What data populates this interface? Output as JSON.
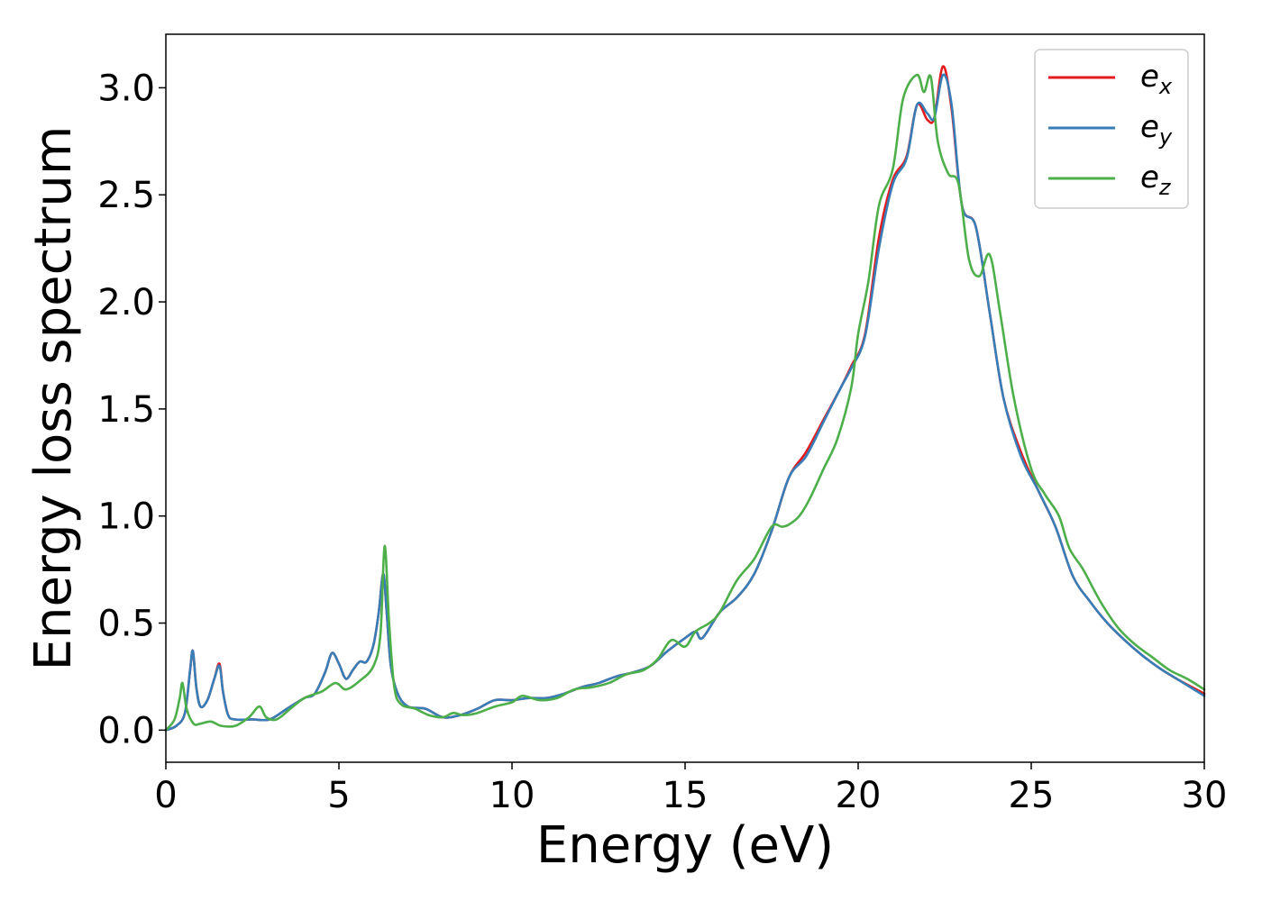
{
  "chart_data": {
    "type": "line",
    "xlabel": "Energy (eV)",
    "ylabel": "Energy loss spectrum",
    "xlim": [
      0,
      30
    ],
    "ylim": [
      -0.15,
      3.25
    ],
    "xticks": [
      "0",
      "5",
      "10",
      "15",
      "20",
      "25",
      "30"
    ],
    "yticks": [
      "0.0",
      "0.5",
      "1.0",
      "1.5",
      "2.0",
      "2.5",
      "3.0"
    ],
    "grid": false,
    "legend_placement": "top-right",
    "series": [
      {
        "name": "e",
        "subscript": "x",
        "color": "#e41a1c",
        "points": [
          [
            0,
            0
          ],
          [
            0.3,
            0.02
          ],
          [
            0.55,
            0.08
          ],
          [
            0.7,
            0.28
          ],
          [
            0.78,
            0.37
          ],
          [
            0.88,
            0.2
          ],
          [
            1.0,
            0.11
          ],
          [
            1.2,
            0.14
          ],
          [
            1.4,
            0.24
          ],
          [
            1.55,
            0.31
          ],
          [
            1.65,
            0.18
          ],
          [
            1.8,
            0.07
          ],
          [
            2.0,
            0.05
          ],
          [
            2.5,
            0.05
          ],
          [
            3.0,
            0.05
          ],
          [
            3.5,
            0.1
          ],
          [
            4.0,
            0.15
          ],
          [
            4.3,
            0.17
          ],
          [
            4.6,
            0.27
          ],
          [
            4.8,
            0.36
          ],
          [
            5.0,
            0.31
          ],
          [
            5.2,
            0.24
          ],
          [
            5.4,
            0.28
          ],
          [
            5.6,
            0.32
          ],
          [
            5.8,
            0.32
          ],
          [
            6.0,
            0.4
          ],
          [
            6.15,
            0.55
          ],
          [
            6.28,
            0.73
          ],
          [
            6.38,
            0.55
          ],
          [
            6.5,
            0.3
          ],
          [
            6.7,
            0.17
          ],
          [
            7.0,
            0.11
          ],
          [
            7.5,
            0.1
          ],
          [
            8.0,
            0.06
          ],
          [
            8.5,
            0.07
          ],
          [
            9.0,
            0.1
          ],
          [
            9.5,
            0.14
          ],
          [
            10.0,
            0.14
          ],
          [
            10.5,
            0.15
          ],
          [
            11.0,
            0.15
          ],
          [
            11.5,
            0.17
          ],
          [
            12.0,
            0.2
          ],
          [
            12.5,
            0.22
          ],
          [
            13.0,
            0.25
          ],
          [
            13.5,
            0.27
          ],
          [
            14.0,
            0.3
          ],
          [
            14.5,
            0.37
          ],
          [
            15.0,
            0.43
          ],
          [
            15.3,
            0.46
          ],
          [
            15.5,
            0.43
          ],
          [
            16.0,
            0.55
          ],
          [
            16.5,
            0.62
          ],
          [
            17.0,
            0.73
          ],
          [
            17.5,
            0.93
          ],
          [
            18.0,
            1.18
          ],
          [
            18.5,
            1.3
          ],
          [
            19.0,
            1.45
          ],
          [
            19.5,
            1.6
          ],
          [
            19.8,
            1.7
          ],
          [
            20.2,
            1.85
          ],
          [
            20.6,
            2.3
          ],
          [
            21.0,
            2.57
          ],
          [
            21.4,
            2.68
          ],
          [
            21.7,
            2.92
          ],
          [
            22.0,
            2.85
          ],
          [
            22.2,
            2.86
          ],
          [
            22.45,
            3.1
          ],
          [
            22.7,
            2.9
          ],
          [
            23.0,
            2.45
          ],
          [
            23.4,
            2.35
          ],
          [
            23.8,
            1.95
          ],
          [
            24.2,
            1.55
          ],
          [
            24.7,
            1.3
          ],
          [
            25.2,
            1.12
          ],
          [
            25.7,
            0.95
          ],
          [
            26.2,
            0.72
          ],
          [
            26.7,
            0.6
          ],
          [
            27.2,
            0.5
          ],
          [
            27.7,
            0.42
          ],
          [
            28.2,
            0.35
          ],
          [
            28.7,
            0.29
          ],
          [
            29.2,
            0.24
          ],
          [
            30.0,
            0.17
          ]
        ]
      },
      {
        "name": "e",
        "subscript": "y",
        "color": "#377eb8",
        "points": [
          [
            0,
            0
          ],
          [
            0.3,
            0.02
          ],
          [
            0.55,
            0.08
          ],
          [
            0.7,
            0.28
          ],
          [
            0.78,
            0.37
          ],
          [
            0.88,
            0.2
          ],
          [
            1.0,
            0.11
          ],
          [
            1.2,
            0.14
          ],
          [
            1.4,
            0.24
          ],
          [
            1.55,
            0.3
          ],
          [
            1.65,
            0.18
          ],
          [
            1.8,
            0.07
          ],
          [
            2.0,
            0.05
          ],
          [
            2.5,
            0.05
          ],
          [
            3.0,
            0.05
          ],
          [
            3.5,
            0.1
          ],
          [
            4.0,
            0.15
          ],
          [
            4.3,
            0.17
          ],
          [
            4.6,
            0.27
          ],
          [
            4.8,
            0.36
          ],
          [
            5.0,
            0.31
          ],
          [
            5.2,
            0.24
          ],
          [
            5.4,
            0.28
          ],
          [
            5.6,
            0.32
          ],
          [
            5.8,
            0.32
          ],
          [
            6.0,
            0.4
          ],
          [
            6.15,
            0.55
          ],
          [
            6.28,
            0.73
          ],
          [
            6.38,
            0.55
          ],
          [
            6.5,
            0.3
          ],
          [
            6.7,
            0.17
          ],
          [
            7.0,
            0.11
          ],
          [
            7.5,
            0.1
          ],
          [
            8.0,
            0.06
          ],
          [
            8.5,
            0.07
          ],
          [
            9.0,
            0.1
          ],
          [
            9.5,
            0.14
          ],
          [
            10.0,
            0.14
          ],
          [
            10.5,
            0.15
          ],
          [
            11.0,
            0.15
          ],
          [
            11.5,
            0.17
          ],
          [
            12.0,
            0.2
          ],
          [
            12.5,
            0.22
          ],
          [
            13.0,
            0.25
          ],
          [
            13.5,
            0.27
          ],
          [
            14.0,
            0.3
          ],
          [
            14.5,
            0.37
          ],
          [
            15.0,
            0.43
          ],
          [
            15.3,
            0.46
          ],
          [
            15.5,
            0.43
          ],
          [
            16.0,
            0.55
          ],
          [
            16.5,
            0.62
          ],
          [
            17.0,
            0.73
          ],
          [
            17.5,
            0.93
          ],
          [
            18.0,
            1.18
          ],
          [
            18.5,
            1.28
          ],
          [
            19.0,
            1.44
          ],
          [
            19.5,
            1.6
          ],
          [
            19.8,
            1.69
          ],
          [
            20.2,
            1.84
          ],
          [
            20.6,
            2.25
          ],
          [
            21.0,
            2.55
          ],
          [
            21.4,
            2.67
          ],
          [
            21.7,
            2.92
          ],
          [
            22.0,
            2.88
          ],
          [
            22.2,
            2.86
          ],
          [
            22.45,
            3.06
          ],
          [
            22.7,
            2.92
          ],
          [
            23.0,
            2.45
          ],
          [
            23.4,
            2.35
          ],
          [
            23.8,
            1.95
          ],
          [
            24.2,
            1.55
          ],
          [
            24.7,
            1.28
          ],
          [
            25.2,
            1.12
          ],
          [
            25.7,
            0.95
          ],
          [
            26.2,
            0.72
          ],
          [
            26.7,
            0.6
          ],
          [
            27.2,
            0.5
          ],
          [
            27.7,
            0.42
          ],
          [
            28.2,
            0.35
          ],
          [
            28.7,
            0.29
          ],
          [
            29.2,
            0.24
          ],
          [
            30.0,
            0.16
          ]
        ]
      },
      {
        "name": "e",
        "subscript": "z",
        "color": "#4daf4a",
        "points": [
          [
            0,
            0
          ],
          [
            0.25,
            0.05
          ],
          [
            0.4,
            0.15
          ],
          [
            0.48,
            0.22
          ],
          [
            0.6,
            0.1
          ],
          [
            0.8,
            0.03
          ],
          [
            1.0,
            0.03
          ],
          [
            1.3,
            0.04
          ],
          [
            1.6,
            0.02
          ],
          [
            2.0,
            0.02
          ],
          [
            2.4,
            0.06
          ],
          [
            2.7,
            0.11
          ],
          [
            2.9,
            0.06
          ],
          [
            3.2,
            0.05
          ],
          [
            3.6,
            0.1
          ],
          [
            4.0,
            0.15
          ],
          [
            4.5,
            0.18
          ],
          [
            4.9,
            0.22
          ],
          [
            5.2,
            0.19
          ],
          [
            5.6,
            0.23
          ],
          [
            6.0,
            0.3
          ],
          [
            6.2,
            0.45
          ],
          [
            6.32,
            0.86
          ],
          [
            6.45,
            0.5
          ],
          [
            6.6,
            0.2
          ],
          [
            6.8,
            0.12
          ],
          [
            7.2,
            0.1
          ],
          [
            7.6,
            0.07
          ],
          [
            8.0,
            0.06
          ],
          [
            8.3,
            0.08
          ],
          [
            8.6,
            0.07
          ],
          [
            9.0,
            0.08
          ],
          [
            9.5,
            0.11
          ],
          [
            10.0,
            0.13
          ],
          [
            10.3,
            0.16
          ],
          [
            10.8,
            0.14
          ],
          [
            11.3,
            0.15
          ],
          [
            11.8,
            0.19
          ],
          [
            12.3,
            0.2
          ],
          [
            12.8,
            0.22
          ],
          [
            13.3,
            0.26
          ],
          [
            13.8,
            0.28
          ],
          [
            14.2,
            0.33
          ],
          [
            14.6,
            0.42
          ],
          [
            15.0,
            0.39
          ],
          [
            15.3,
            0.46
          ],
          [
            15.7,
            0.5
          ],
          [
            16.0,
            0.55
          ],
          [
            16.5,
            0.7
          ],
          [
            17.0,
            0.8
          ],
          [
            17.5,
            0.95
          ],
          [
            17.8,
            0.95
          ],
          [
            18.0,
            0.96
          ],
          [
            18.3,
            1.0
          ],
          [
            18.6,
            1.08
          ],
          [
            19.0,
            1.22
          ],
          [
            19.4,
            1.36
          ],
          [
            19.8,
            1.6
          ],
          [
            20.0,
            1.85
          ],
          [
            20.3,
            2.1
          ],
          [
            20.6,
            2.45
          ],
          [
            21.0,
            2.62
          ],
          [
            21.3,
            2.95
          ],
          [
            21.7,
            3.06
          ],
          [
            21.9,
            2.98
          ],
          [
            22.1,
            3.05
          ],
          [
            22.3,
            2.75
          ],
          [
            22.6,
            2.6
          ],
          [
            22.9,
            2.55
          ],
          [
            23.2,
            2.2
          ],
          [
            23.5,
            2.12
          ],
          [
            23.8,
            2.22
          ],
          [
            24.1,
            1.95
          ],
          [
            24.5,
            1.55
          ],
          [
            25.0,
            1.22
          ],
          [
            25.4,
            1.1
          ],
          [
            25.8,
            1.0
          ],
          [
            26.1,
            0.85
          ],
          [
            26.5,
            0.75
          ],
          [
            27.0,
            0.6
          ],
          [
            27.5,
            0.48
          ],
          [
            28.0,
            0.4
          ],
          [
            28.5,
            0.34
          ],
          [
            29.0,
            0.28
          ],
          [
            29.5,
            0.24
          ],
          [
            30.0,
            0.19
          ]
        ]
      }
    ]
  }
}
